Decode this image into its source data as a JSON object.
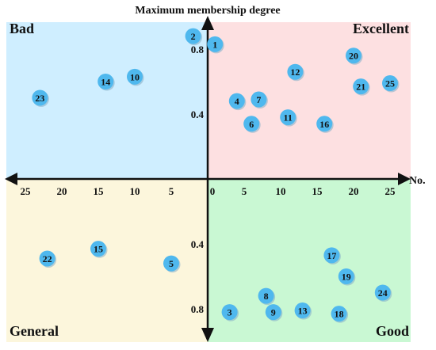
{
  "chart_data": {
    "type": "scatter",
    "title": "",
    "y_axis_title": "Maximum membership degree",
    "x_axis_title": "No.",
    "xlim": [
      -28,
      28
    ],
    "ylim": [
      -1,
      1
    ],
    "x_ticks": [
      25,
      20,
      15,
      10,
      5,
      0,
      5,
      10,
      15,
      20,
      25
    ],
    "y_ticks": [
      "0.8",
      "0.4",
      "0.4",
      "0.8"
    ],
    "quadrants": [
      {
        "key": "bad",
        "label": "Bad",
        "color": "#cfeeff"
      },
      {
        "key": "excellent",
        "label": "Excellent",
        "color": "#fde0e1"
      },
      {
        "key": "general",
        "label": "General",
        "color": "#fcf6dc"
      },
      {
        "key": "good",
        "label": "Good",
        "color": "#c9f8d3"
      }
    ],
    "marker_color": "#4fb8ee",
    "points": [
      {
        "id": "1",
        "quadrant": "excellent",
        "x": 1,
        "y": 0.83
      },
      {
        "id": "2",
        "quadrant": "bad",
        "x": 2,
        "y": 0.88
      },
      {
        "id": "3",
        "quadrant": "good",
        "x": 3,
        "y": 0.82
      },
      {
        "id": "4",
        "quadrant": "excellent",
        "x": 4,
        "y": 0.48
      },
      {
        "id": "5",
        "quadrant": "general",
        "x": 5,
        "y": 0.52
      },
      {
        "id": "6",
        "quadrant": "excellent",
        "x": 6,
        "y": 0.34
      },
      {
        "id": "7",
        "quadrant": "excellent",
        "x": 7,
        "y": 0.49
      },
      {
        "id": "8",
        "quadrant": "good",
        "x": 8,
        "y": 0.72
      },
      {
        "id": "9",
        "quadrant": "good",
        "x": 9,
        "y": 0.82
      },
      {
        "id": "10",
        "quadrant": "bad",
        "x": 10,
        "y": 0.63
      },
      {
        "id": "11",
        "quadrant": "excellent",
        "x": 11,
        "y": 0.38
      },
      {
        "id": "12",
        "quadrant": "excellent",
        "x": 12,
        "y": 0.66
      },
      {
        "id": "13",
        "quadrant": "good",
        "x": 13,
        "y": 0.81
      },
      {
        "id": "14",
        "quadrant": "bad",
        "x": 14,
        "y": 0.6
      },
      {
        "id": "15",
        "quadrant": "general",
        "x": 15,
        "y": 0.43
      },
      {
        "id": "16",
        "quadrant": "excellent",
        "x": 16,
        "y": 0.34
      },
      {
        "id": "17",
        "quadrant": "good",
        "x": 17,
        "y": 0.47
      },
      {
        "id": "18",
        "quadrant": "good",
        "x": 18,
        "y": 0.83
      },
      {
        "id": "19",
        "quadrant": "good",
        "x": 19,
        "y": 0.6
      },
      {
        "id": "20",
        "quadrant": "excellent",
        "x": 20,
        "y": 0.76
      },
      {
        "id": "21",
        "quadrant": "excellent",
        "x": 21,
        "y": 0.57
      },
      {
        "id": "22",
        "quadrant": "general",
        "x": 22,
        "y": 0.49
      },
      {
        "id": "23",
        "quadrant": "bad",
        "x": 23,
        "y": 0.5
      },
      {
        "id": "24",
        "quadrant": "good",
        "x": 24,
        "y": 0.7
      },
      {
        "id": "25",
        "quadrant": "excellent",
        "x": 25,
        "y": 0.59
      }
    ]
  }
}
